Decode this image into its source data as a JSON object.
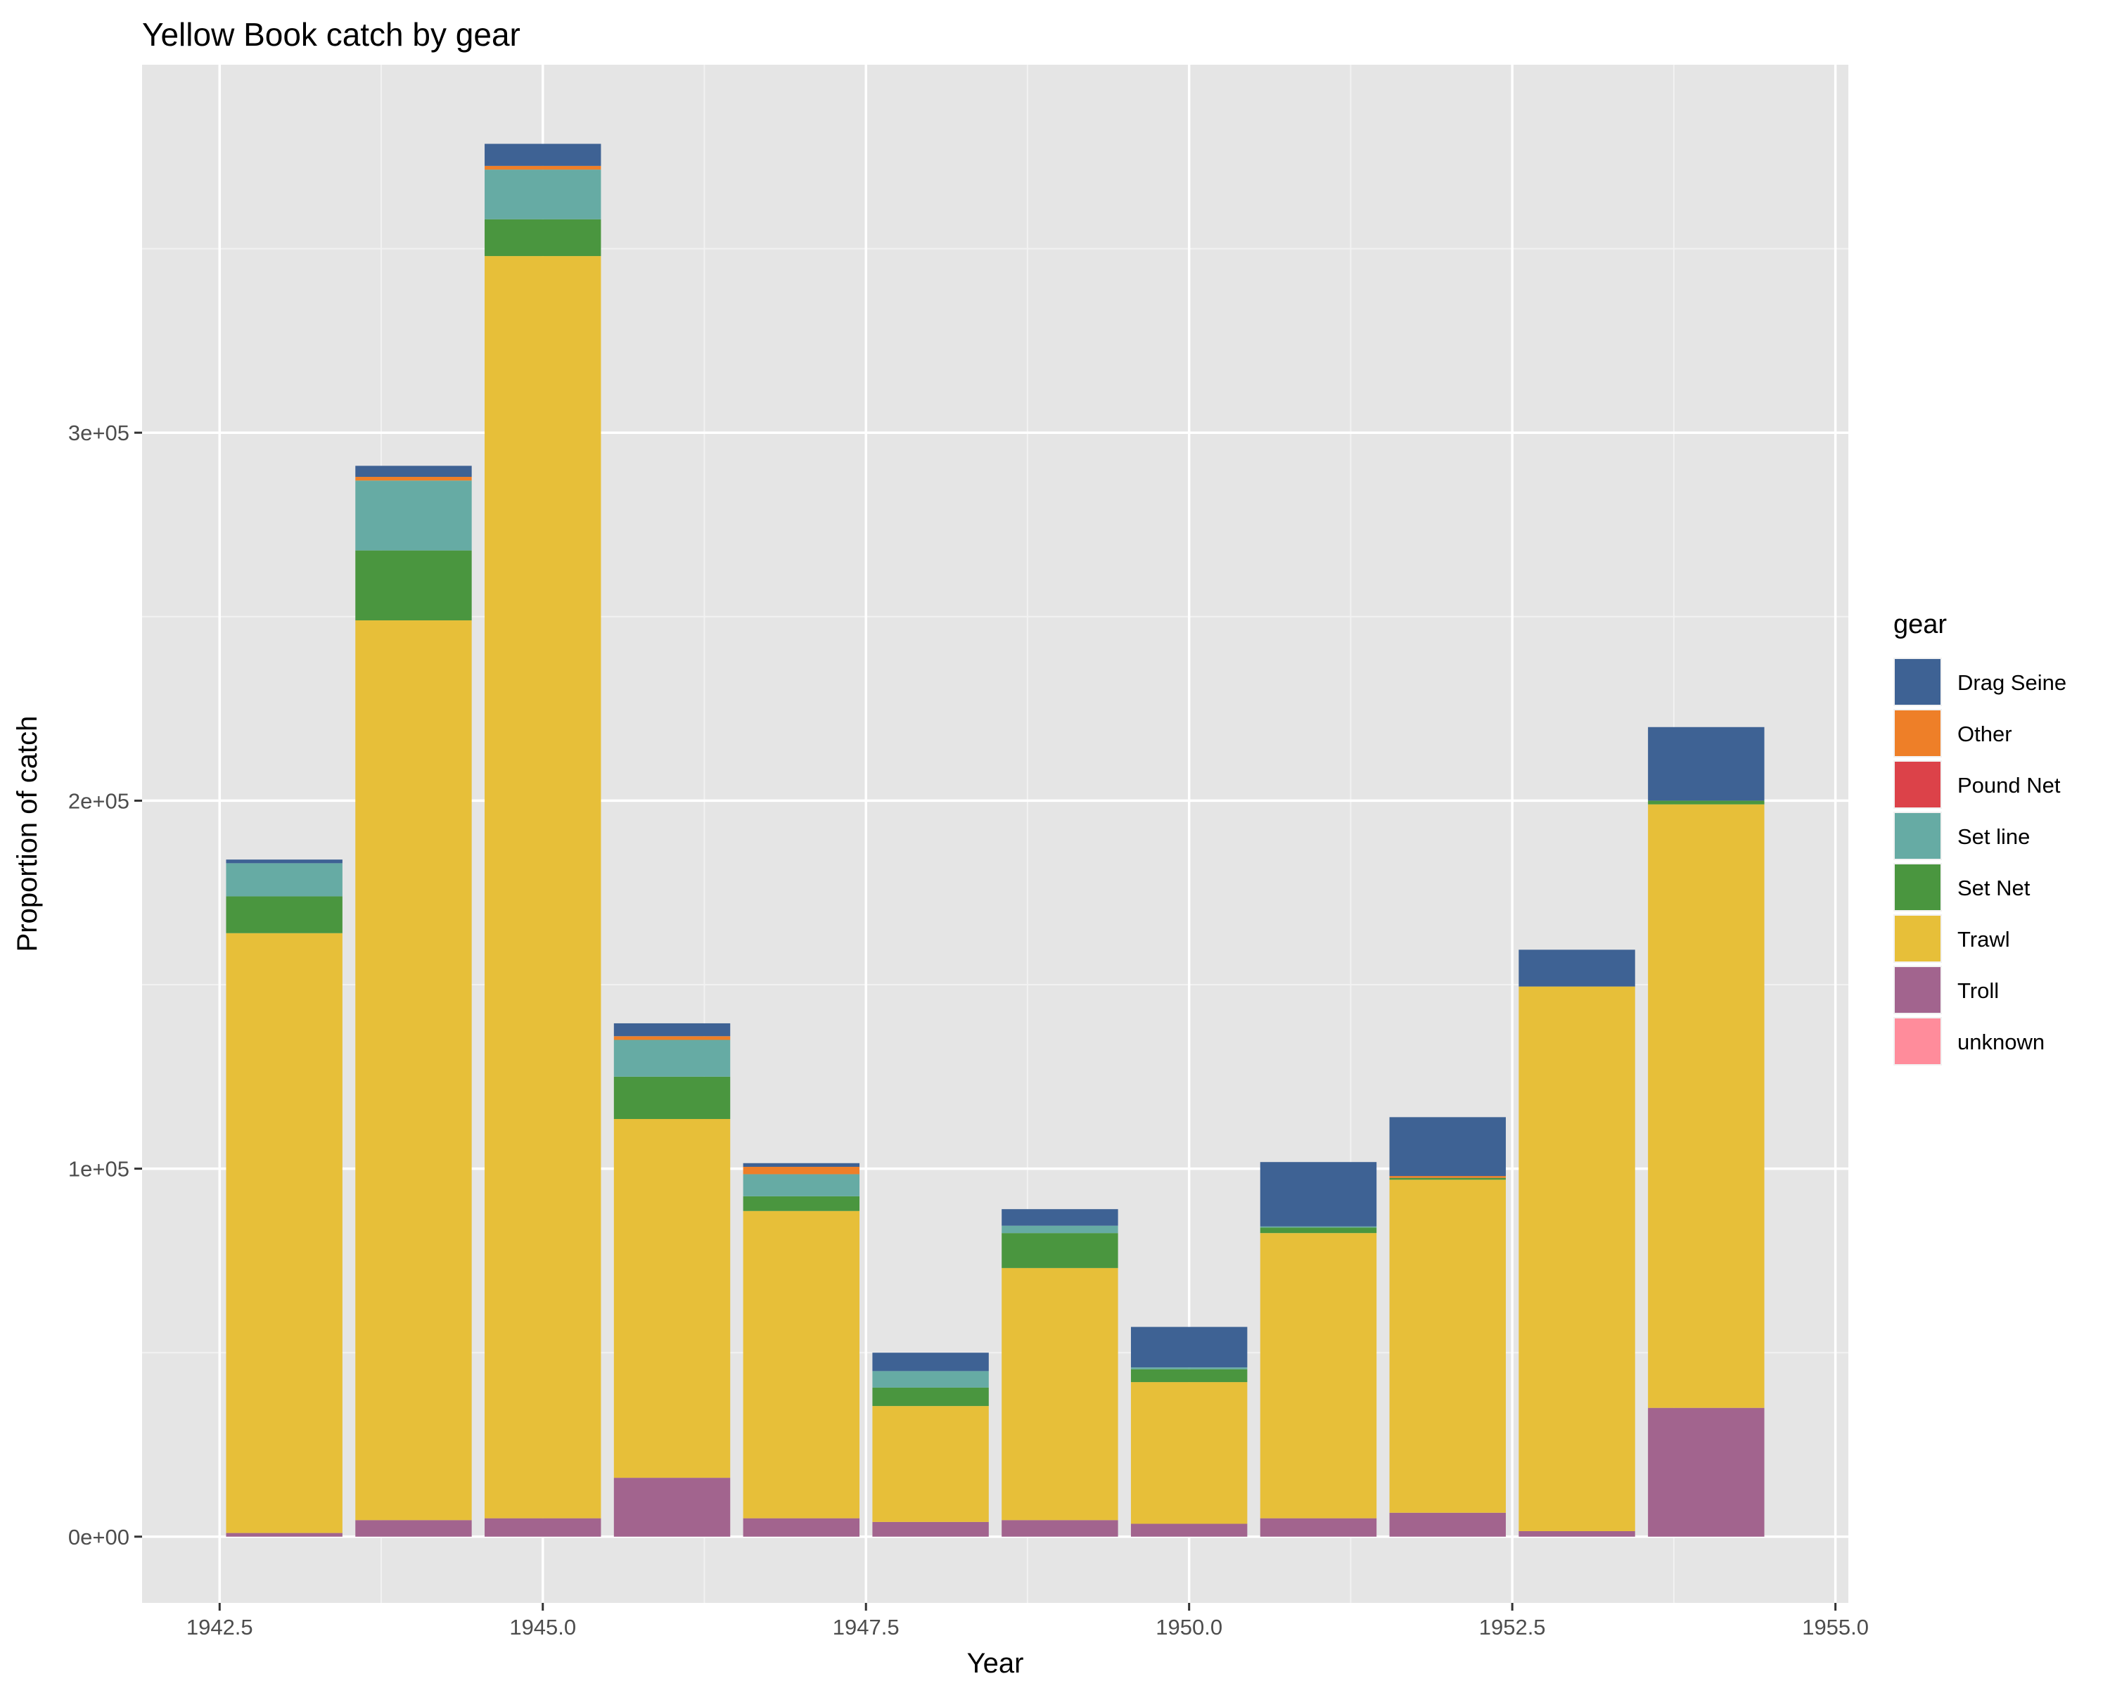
{
  "chart_data": {
    "type": "bar",
    "stacked": true,
    "title": "Yellow Book catch by gear",
    "xlabel": "Year",
    "ylabel": "Proportion of catch",
    "xlim": [
      1941.9,
      1955.1
    ],
    "ylim": [
      -18000,
      400000
    ],
    "x_ticks": [
      {
        "value": 1942.5,
        "label": "1942.5"
      },
      {
        "value": 1945.0,
        "label": "1945.0"
      },
      {
        "value": 1947.5,
        "label": "1947.5"
      },
      {
        "value": 1950.0,
        "label": "1950.0"
      },
      {
        "value": 1952.5,
        "label": "1952.5"
      },
      {
        "value": 1955.0,
        "label": "1955.0"
      }
    ],
    "y_ticks": [
      {
        "value": 0,
        "label": "0e+00"
      },
      {
        "value": 100000,
        "label": "1e+05"
      },
      {
        "value": 200000,
        "label": "2e+05"
      },
      {
        "value": 300000,
        "label": "3e+05"
      }
    ],
    "grid": true,
    "legend": {
      "title": "gear",
      "position": "right"
    },
    "x": [
      1943,
      1944,
      1945,
      1946,
      1947,
      1948,
      1949,
      1950,
      1951,
      1952,
      1953,
      1954
    ],
    "series": [
      {
        "name": "Troll",
        "color": "#A2648E",
        "values": [
          1000,
          4500,
          5000,
          16000,
          5000,
          4000,
          4500,
          3500,
          5000,
          6500,
          1500,
          35000
        ]
      },
      {
        "name": "unknown",
        "color": "#FF8C9B",
        "values": [
          0,
          0,
          0,
          0,
          0,
          0,
          0,
          0,
          0,
          0,
          0,
          0
        ]
      },
      {
        "name": "Trawl",
        "color": "#E7BF39",
        "values": [
          163000,
          244500,
          343000,
          97500,
          83500,
          31500,
          68500,
          38500,
          77500,
          90500,
          148000,
          164000
        ]
      },
      {
        "name": "Set Net",
        "color": "#4A963F",
        "values": [
          10000,
          19000,
          10000,
          11500,
          4000,
          5000,
          9500,
          3500,
          1500,
          500,
          0,
          1000
        ]
      },
      {
        "name": "Set line",
        "color": "#66ABA4",
        "values": [
          9000,
          19000,
          13500,
          10000,
          6000,
          4500,
          2000,
          500,
          300,
          0,
          0,
          0
        ]
      },
      {
        "name": "Pound Net",
        "color": "#DC4249",
        "values": [
          0,
          0,
          0,
          0,
          0,
          0,
          0,
          0,
          0,
          0,
          0,
          0
        ]
      },
      {
        "name": "Other",
        "color": "#EE7F28",
        "values": [
          0,
          1000,
          1000,
          1000,
          2000,
          0,
          0,
          0,
          0,
          500,
          0,
          0
        ]
      },
      {
        "name": "Drag Seine",
        "color": "#3E6294",
        "values": [
          1000,
          3000,
          6000,
          3500,
          1000,
          5000,
          4500,
          11000,
          17500,
          16000,
          10000,
          20000
        ]
      }
    ],
    "legend_order": [
      "Drag Seine",
      "Other",
      "Pound Net",
      "Set line",
      "Set Net",
      "Trawl",
      "Troll",
      "unknown"
    ],
    "bar_width": 0.9
  }
}
